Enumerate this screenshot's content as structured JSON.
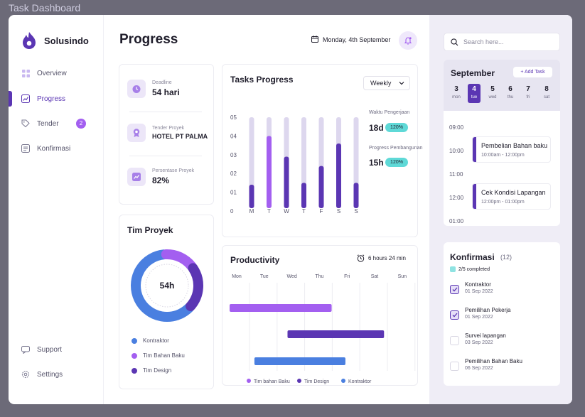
{
  "window": {
    "title": "Task Dashboard"
  },
  "brand": {
    "name": "Solusindo",
    "accent": "#5b36b3"
  },
  "nav": {
    "items": [
      {
        "label": "Overview",
        "icon": "grid-icon"
      },
      {
        "label": "Progress",
        "icon": "chart-line-icon",
        "active": true
      },
      {
        "label": "Tender",
        "icon": "tag-icon",
        "badge": "2"
      },
      {
        "label": "Konfirmasi",
        "icon": "checklist-icon"
      }
    ],
    "bottom": [
      {
        "label": "Support",
        "icon": "chat-icon"
      },
      {
        "label": "Settings",
        "icon": "gear-icon"
      }
    ]
  },
  "header": {
    "title": "Progress",
    "date": "Monday, 4th September"
  },
  "info": {
    "deadline_label": "Deadline",
    "deadline_value": "54 hari",
    "tender_label": "Tender Proyek",
    "tender_value": "HOTEL PT PALMA",
    "percent_label": "Persentase Proyek",
    "percent_value": "82%"
  },
  "tasks_progress": {
    "title": "Tasks Progress",
    "period": "Weekly",
    "stats": [
      {
        "label": "Waktu Pengerjaan",
        "value": "18d",
        "pill": "120%"
      },
      {
        "label": "Progress Pembangunan",
        "value": "15h",
        "pill": "120%"
      }
    ]
  },
  "team": {
    "title": "Tim Proyek",
    "center_label": "54h",
    "legend": [
      {
        "label": "Kontraktor",
        "color": "#4a7fe0"
      },
      {
        "label": "Tim Bahan Baku",
        "color": "#a35ff0"
      },
      {
        "label": "Tim Design",
        "color": "#5b36b3"
      }
    ]
  },
  "productivity": {
    "title": "Productivity",
    "time": "6 hours 24 min",
    "days": [
      "Mon",
      "Tue",
      "Wed",
      "Thu",
      "Fri",
      "Sat",
      "Sun"
    ],
    "legend": [
      {
        "label": "Tim bahan Baku",
        "color": "#a35ff0"
      },
      {
        "label": "Tim Design",
        "color": "#5b36b3"
      },
      {
        "label": "Kontraktor",
        "color": "#4a7fe0"
      }
    ]
  },
  "right": {
    "search_placeholder": "Search here...",
    "calendar": {
      "month": "September",
      "add_task": "+ Add Task",
      "days": [
        {
          "num": "3",
          "name": "mon"
        },
        {
          "num": "4",
          "name": "tue",
          "selected": true
        },
        {
          "num": "5",
          "name": "wed"
        },
        {
          "num": "6",
          "name": "thu"
        },
        {
          "num": "7",
          "name": "fri"
        },
        {
          "num": "8",
          "name": "sat"
        }
      ],
      "times": [
        "09:00",
        "10:00",
        "11:00",
        "12:00",
        "01:00"
      ],
      "events": [
        {
          "title": "Pembelian Bahan baku",
          "time": "10:00am - 12:00pm"
        },
        {
          "title": "Cek Kondisi Lapangan",
          "time": "12:00pm - 01:00pm"
        }
      ]
    },
    "konfirmasi": {
      "title": "Konfirmasi",
      "count": "(12)",
      "completed": "2/5 completed",
      "items": [
        {
          "title": "Kontraktor",
          "date": "01 Sep 2022",
          "done": true
        },
        {
          "title": "Pemilihan Pekerja",
          "date": "01 Sep 2022",
          "done": true
        },
        {
          "title": "Survei lapangan",
          "date": "03 Sep 2022",
          "done": false
        },
        {
          "title": "Pemilihan Bahan Baku",
          "date": "06 Sep 2022",
          "done": false
        }
      ]
    }
  },
  "chart_data": [
    {
      "type": "bar",
      "title": "Tasks Progress",
      "categories": [
        "M",
        "T",
        "W",
        "T",
        "F",
        "S",
        "S"
      ],
      "ylim": [
        0,
        5
      ],
      "yticks": [
        "0",
        "01",
        "02",
        "03",
        "04",
        "05"
      ],
      "series": [
        {
          "values": [
            5,
            5,
            5,
            5,
            5,
            5,
            5
          ],
          "color": "#ddd7ee"
        },
        {
          "values": [
            1.4,
            4.0,
            2.9,
            1.5,
            2.4,
            3.6,
            1.5
          ],
          "color": "#5b36b3",
          "highlight_color": "#a35ff0",
          "highlight_index": 1
        }
      ]
    },
    {
      "type": "pie",
      "title": "Tim Proyek",
      "center_label": "54h",
      "slices": [
        {
          "name": "Kontraktor",
          "value": 0.62,
          "color": "#4a7fe0"
        },
        {
          "name": "Tim Bahan Baku",
          "value": 0.16,
          "color": "#a35ff0"
        },
        {
          "name": "Tim Design",
          "value": 0.22,
          "color": "#5b36b3"
        }
      ]
    },
    {
      "type": "bar",
      "title": "Productivity",
      "categories": [
        "Mon",
        "Tue",
        "Wed",
        "Thu",
        "Fri",
        "Sat",
        "Sun"
      ],
      "series": [
        {
          "name": "Tim bahan Baku",
          "start": 0,
          "end": 3.7,
          "color": "#a35ff0"
        },
        {
          "name": "Tim Design",
          "start": 2.1,
          "end": 5.6,
          "color": "#5b36b3"
        },
        {
          "name": "Kontraktor",
          "start": 0.9,
          "end": 4.2,
          "color": "#4a7fe0"
        }
      ]
    }
  ]
}
